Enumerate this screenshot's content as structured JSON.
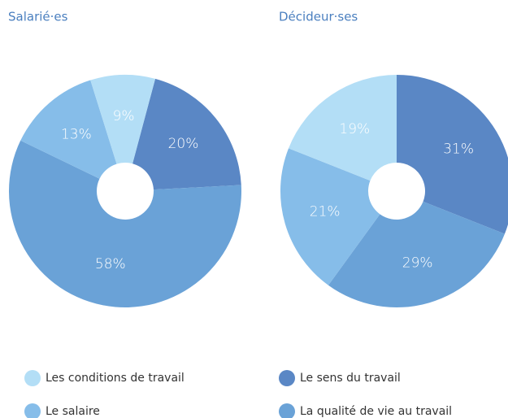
{
  "chart_data": [
    {
      "type": "pie",
      "title": "Salarié·es",
      "categories": [
        "Les conditions de travail",
        "Le salaire",
        "Le sens du travail",
        "La qualité de vie au travail"
      ],
      "colors": [
        "#b3def6",
        "#86bde9",
        "#5a87c5",
        "#6aa2d7"
      ],
      "values": [
        9,
        13,
        20,
        58
      ],
      "value_labels": [
        "9%",
        "13%",
        "20%",
        "58%"
      ]
    },
    {
      "type": "pie",
      "title": "Décideur·ses",
      "categories": [
        "Les conditions de travail",
        "Le salaire",
        "Le sens du travail",
        "La qualité de vie au travail"
      ],
      "colors": [
        "#b3def6",
        "#86bde9",
        "#5a87c5",
        "#6aa2d7"
      ],
      "values": [
        19,
        21,
        31,
        29
      ],
      "value_labels": [
        "19%",
        "21%",
        "31%",
        "29%"
      ]
    }
  ]
}
